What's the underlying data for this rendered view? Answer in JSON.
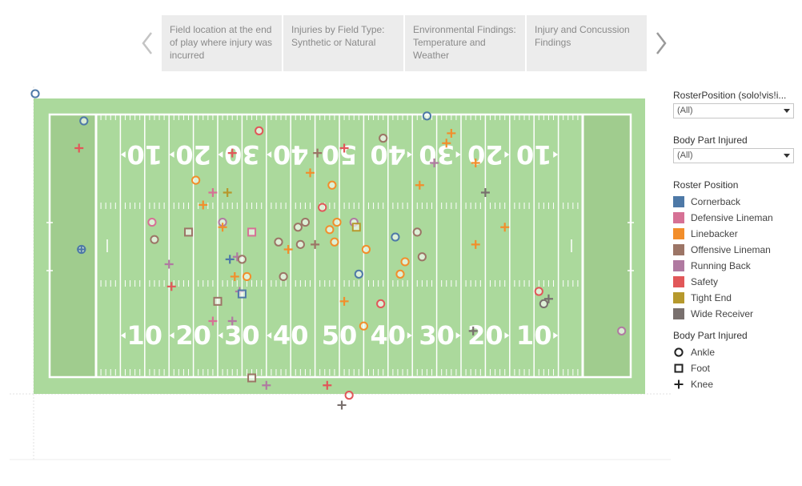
{
  "story": {
    "tabs": [
      {
        "label": "Field location at the end of play where injury was incurred",
        "active": true
      },
      {
        "label": "Injuries by Field Type: Synthetic or Natural",
        "active": false
      },
      {
        "label": "Environmental Findings: Temperature and Weather",
        "active": false
      },
      {
        "label": "Injury and Concussion Findings",
        "active": false
      }
    ]
  },
  "filters": {
    "roster_position": {
      "title": "RosterPosition (solo!vis!i...",
      "value": "(All)"
    },
    "body_part": {
      "title": "Body Part Injured",
      "value": "(All)"
    }
  },
  "legend": {
    "roster_title": "Roster Position",
    "roster_items": [
      {
        "label": "Cornerback",
        "color": "#4e79a7"
      },
      {
        "label": "Defensive Lineman",
        "color": "#d67195"
      },
      {
        "label": "Linebacker",
        "color": "#f28e2b"
      },
      {
        "label": "Offensive Lineman",
        "color": "#9c7566"
      },
      {
        "label": "Running Back",
        "color": "#b07aa1"
      },
      {
        "label": "Safety",
        "color": "#e15759"
      },
      {
        "label": "Tight End",
        "color": "#b6992d"
      },
      {
        "label": "Wide Receiver",
        "color": "#79706e"
      }
    ],
    "shape_title": "Body Part Injured",
    "shape_items": [
      {
        "label": "Ankle",
        "icon": "circle-icon"
      },
      {
        "label": "Foot",
        "icon": "square-icon"
      },
      {
        "label": "Knee",
        "icon": "plus-icon"
      }
    ]
  },
  "chart_data": {
    "type": "scatter",
    "field_labels_top": [
      "10",
      "20",
      "30",
      "40",
      "50",
      "40",
      "30",
      "20",
      "10"
    ],
    "field_labels_bottom": [
      "10",
      "20",
      "30",
      "40",
      "50",
      "40",
      "30",
      "20",
      "10"
    ],
    "xlim": [
      -13,
      132
    ],
    "ylim": [
      -12.5,
      58
    ],
    "points": [
      {
        "x": -12.5,
        "y": 57.5,
        "pos": "Cornerback",
        "part": "Ankle"
      },
      {
        "x": -2.5,
        "y": 52,
        "pos": "Cornerback",
        "part": "Ankle"
      },
      {
        "x": -3.5,
        "y": 46.5,
        "pos": "Safety",
        "part": "Knee"
      },
      {
        "x": 33.5,
        "y": 50,
        "pos": "Safety",
        "part": "Ankle"
      },
      {
        "x": 28,
        "y": 45.5,
        "pos": "Safety",
        "part": "Knee"
      },
      {
        "x": 59,
        "y": 48.5,
        "pos": "Offensive Lineman",
        "part": "Ankle"
      },
      {
        "x": 68,
        "y": 53,
        "pos": "Cornerback",
        "part": "Ankle"
      },
      {
        "x": 73,
        "y": 49.5,
        "pos": "Linebacker",
        "part": "Knee"
      },
      {
        "x": 72,
        "y": 47.5,
        "pos": "Linebacker",
        "part": "Knee"
      },
      {
        "x": 51,
        "y": 46.5,
        "pos": "Safety",
        "part": "Knee"
      },
      {
        "x": 45.5,
        "y": 45.5,
        "pos": "Offensive Lineman",
        "part": "Knee"
      },
      {
        "x": 69.5,
        "y": 43.5,
        "pos": "Running Back",
        "part": "Knee"
      },
      {
        "x": 78,
        "y": 43.5,
        "pos": "Linebacker",
        "part": "Knee"
      },
      {
        "x": 44,
        "y": 41.5,
        "pos": "Linebacker",
        "part": "Knee"
      },
      {
        "x": 20.5,
        "y": 40,
        "pos": "Linebacker",
        "part": "Ankle"
      },
      {
        "x": 24,
        "y": 37.5,
        "pos": "Defensive Lineman",
        "part": "Knee"
      },
      {
        "x": 27,
        "y": 37.5,
        "pos": "Tight End",
        "part": "Knee"
      },
      {
        "x": 48.5,
        "y": 39,
        "pos": "Linebacker",
        "part": "Ankle"
      },
      {
        "x": 66.5,
        "y": 39,
        "pos": "Linebacker",
        "part": "Knee"
      },
      {
        "x": 80,
        "y": 37.5,
        "pos": "Wide Receiver",
        "part": "Knee"
      },
      {
        "x": 22,
        "y": 35,
        "pos": "Linebacker",
        "part": "Knee"
      },
      {
        "x": 46.5,
        "y": 34.5,
        "pos": "Safety",
        "part": "Ankle"
      },
      {
        "x": 11.5,
        "y": 31.5,
        "pos": "Defensive Lineman",
        "part": "Ankle"
      },
      {
        "x": 26,
        "y": 31.5,
        "pos": "Running Back",
        "part": "Ankle"
      },
      {
        "x": 26,
        "y": 30.5,
        "pos": "Linebacker",
        "part": "Knee"
      },
      {
        "x": 19,
        "y": 29.5,
        "pos": "Offensive Lineman",
        "part": "Foot"
      },
      {
        "x": 32,
        "y": 29.5,
        "pos": "Defensive Lineman",
        "part": "Foot"
      },
      {
        "x": 41.5,
        "y": 30.5,
        "pos": "Offensive Lineman",
        "part": "Ankle"
      },
      {
        "x": 43,
        "y": 31.5,
        "pos": "Offensive Lineman",
        "part": "Ankle"
      },
      {
        "x": 48,
        "y": 30,
        "pos": "Linebacker",
        "part": "Ankle"
      },
      {
        "x": 49.5,
        "y": 31.5,
        "pos": "Linebacker",
        "part": "Ankle"
      },
      {
        "x": 53,
        "y": 31.5,
        "pos": "Running Back",
        "part": "Ankle"
      },
      {
        "x": 53.5,
        "y": 30.5,
        "pos": "Tight End",
        "part": "Foot"
      },
      {
        "x": 66,
        "y": 29.5,
        "pos": "Offensive Lineman",
        "part": "Ankle"
      },
      {
        "x": 84,
        "y": 30.5,
        "pos": "Linebacker",
        "part": "Knee"
      },
      {
        "x": 12,
        "y": 28,
        "pos": "Offensive Lineman",
        "part": "Ankle"
      },
      {
        "x": 37.5,
        "y": 27.5,
        "pos": "Offensive Lineman",
        "part": "Ankle"
      },
      {
        "x": 42,
        "y": 27,
        "pos": "Offensive Lineman",
        "part": "Ankle"
      },
      {
        "x": 45,
        "y": 27,
        "pos": "Offensive Lineman",
        "part": "Knee"
      },
      {
        "x": 49,
        "y": 27.5,
        "pos": "Linebacker",
        "part": "Ankle"
      },
      {
        "x": 55.5,
        "y": 26,
        "pos": "Linebacker",
        "part": "Ankle"
      },
      {
        "x": 61.5,
        "y": 28.5,
        "pos": "Cornerback",
        "part": "Ankle"
      },
      {
        "x": 78,
        "y": 27,
        "pos": "Linebacker",
        "part": "Knee"
      },
      {
        "x": 39.5,
        "y": 26,
        "pos": "Linebacker",
        "part": "Knee"
      },
      {
        "x": -3,
        "y": 26,
        "pos": "Cornerback",
        "part": "Ankle"
      },
      {
        "x": -3,
        "y": 26,
        "pos": "Cornerback",
        "part": "Knee"
      },
      {
        "x": 29,
        "y": 24.5,
        "pos": "Running Back",
        "part": "Knee"
      },
      {
        "x": 30,
        "y": 24,
        "pos": "Offensive Lineman",
        "part": "Ankle"
      },
      {
        "x": 27.5,
        "y": 24,
        "pos": "Cornerback",
        "part": "Knee"
      },
      {
        "x": 15,
        "y": 23,
        "pos": "Running Back",
        "part": "Knee"
      },
      {
        "x": 63.5,
        "y": 23.5,
        "pos": "Linebacker",
        "part": "Ankle"
      },
      {
        "x": 67,
        "y": 24.5,
        "pos": "Offensive Lineman",
        "part": "Ankle"
      },
      {
        "x": 54,
        "y": 21,
        "pos": "Cornerback",
        "part": "Ankle"
      },
      {
        "x": 38.5,
        "y": 20.5,
        "pos": "Offensive Lineman",
        "part": "Ankle"
      },
      {
        "x": 28.5,
        "y": 20.5,
        "pos": "Linebacker",
        "part": "Knee"
      },
      {
        "x": 31,
        "y": 20.5,
        "pos": "Linebacker",
        "part": "Ankle"
      },
      {
        "x": 62.5,
        "y": 21,
        "pos": "Linebacker",
        "part": "Ankle"
      },
      {
        "x": 15.5,
        "y": 18.5,
        "pos": "Safety",
        "part": "Knee"
      },
      {
        "x": 29.5,
        "y": 17.5,
        "pos": "Running Back",
        "part": "Knee"
      },
      {
        "x": 30,
        "y": 17,
        "pos": "Cornerback",
        "part": "Foot"
      },
      {
        "x": 91,
        "y": 17.5,
        "pos": "Safety",
        "part": "Ankle"
      },
      {
        "x": 93,
        "y": 16,
        "pos": "Wide Receiver",
        "part": "Knee"
      },
      {
        "x": 92,
        "y": 15,
        "pos": "Wide Receiver",
        "part": "Ankle"
      },
      {
        "x": 25,
        "y": 15.5,
        "pos": "Offensive Lineman",
        "part": "Foot"
      },
      {
        "x": 51,
        "y": 15.5,
        "pos": "Linebacker",
        "part": "Knee"
      },
      {
        "x": 58.5,
        "y": 15,
        "pos": "Safety",
        "part": "Ankle"
      },
      {
        "x": 24,
        "y": 11.5,
        "pos": "Defensive Lineman",
        "part": "Knee"
      },
      {
        "x": 28,
        "y": 11.5,
        "pos": "Running Back",
        "part": "Knee"
      },
      {
        "x": 55,
        "y": 10.5,
        "pos": "Linebacker",
        "part": "Ankle"
      },
      {
        "x": 77.5,
        "y": 9.5,
        "pos": "Wide Receiver",
        "part": "Knee"
      },
      {
        "x": 108,
        "y": 9.5,
        "pos": "Running Back",
        "part": "Ankle"
      },
      {
        "x": 32,
        "y": 0,
        "pos": "Offensive Lineman",
        "part": "Foot"
      },
      {
        "x": 35,
        "y": -1.5,
        "pos": "Running Back",
        "part": "Knee"
      },
      {
        "x": 47.5,
        "y": -1.5,
        "pos": "Safety",
        "part": "Knee"
      },
      {
        "x": 52,
        "y": -3.5,
        "pos": "Safety",
        "part": "Ankle"
      },
      {
        "x": 50.5,
        "y": -5.5,
        "pos": "Wide Receiver",
        "part": "Knee"
      }
    ]
  }
}
